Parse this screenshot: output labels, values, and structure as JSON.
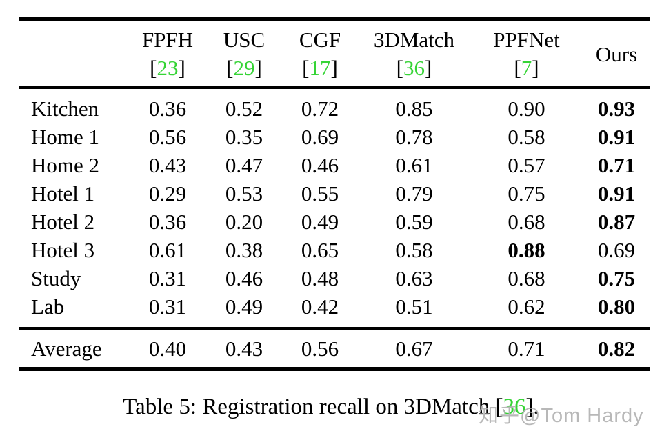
{
  "colors": {
    "cite_green": "#35d435",
    "text": "#000000",
    "rule": "#000000",
    "watermark_gray": "#b3b3b3"
  },
  "table": {
    "columns": [
      {
        "name": "FPFH",
        "cite": "23"
      },
      {
        "name": "USC",
        "cite": "29"
      },
      {
        "name": "CGF",
        "cite": "17"
      },
      {
        "name": "3DMatch",
        "cite": "36"
      },
      {
        "name": "PPFNet",
        "cite": "7"
      },
      {
        "name": "Ours",
        "cite": ""
      }
    ],
    "rows": [
      {
        "label": "Kitchen",
        "values": [
          "0.36",
          "0.52",
          "0.72",
          "0.85",
          "0.90",
          "0.93"
        ],
        "bold": [
          0,
          0,
          0,
          0,
          0,
          1
        ]
      },
      {
        "label": "Home 1",
        "values": [
          "0.56",
          "0.35",
          "0.69",
          "0.78",
          "0.58",
          "0.91"
        ],
        "bold": [
          0,
          0,
          0,
          0,
          0,
          1
        ]
      },
      {
        "label": "Home 2",
        "values": [
          "0.43",
          "0.47",
          "0.46",
          "0.61",
          "0.57",
          "0.71"
        ],
        "bold": [
          0,
          0,
          0,
          0,
          0,
          1
        ]
      },
      {
        "label": "Hotel 1",
        "values": [
          "0.29",
          "0.53",
          "0.55",
          "0.79",
          "0.75",
          "0.91"
        ],
        "bold": [
          0,
          0,
          0,
          0,
          0,
          1
        ]
      },
      {
        "label": "Hotel 2",
        "values": [
          "0.36",
          "0.20",
          "0.49",
          "0.59",
          "0.68",
          "0.87"
        ],
        "bold": [
          0,
          0,
          0,
          0,
          0,
          1
        ]
      },
      {
        "label": "Hotel 3",
        "values": [
          "0.61",
          "0.38",
          "0.65",
          "0.58",
          "0.88",
          "0.69"
        ],
        "bold": [
          0,
          0,
          0,
          0,
          1,
          0
        ]
      },
      {
        "label": "Study",
        "values": [
          "0.31",
          "0.46",
          "0.48",
          "0.63",
          "0.68",
          "0.75"
        ],
        "bold": [
          0,
          0,
          0,
          0,
          0,
          1
        ]
      },
      {
        "label": "Lab",
        "values": [
          "0.31",
          "0.49",
          "0.42",
          "0.51",
          "0.62",
          "0.80"
        ],
        "bold": [
          0,
          0,
          0,
          0,
          0,
          1
        ]
      }
    ],
    "summary_row": {
      "label": "Average",
      "values": [
        "0.40",
        "0.43",
        "0.56",
        "0.67",
        "0.71",
        "0.82"
      ],
      "bold": [
        0,
        0,
        0,
        0,
        0,
        1
      ]
    }
  },
  "caption": {
    "prefix": "Table 5: Registration recall on 3DMatch ",
    "bracket_open": "[",
    "cite": "36",
    "bracket_close": "]",
    "suffix": "."
  },
  "watermark": {
    "text": "知乎@Tom Hardy"
  }
}
